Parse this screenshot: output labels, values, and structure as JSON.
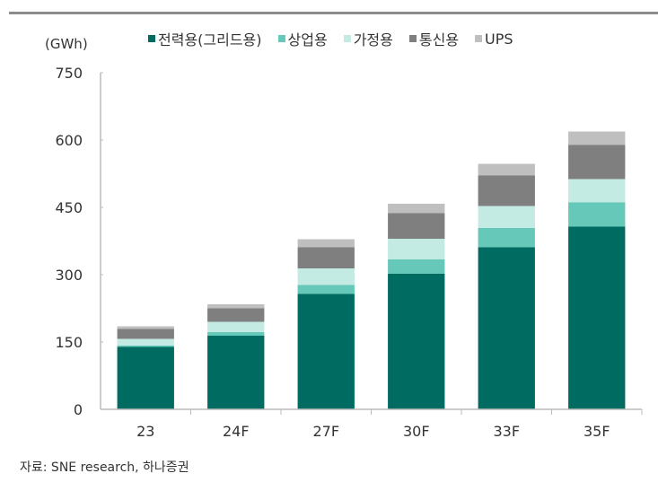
{
  "chart_data": {
    "type": "bar",
    "stacked": true,
    "unit_label": "(GWh)",
    "categories": [
      "23",
      "24F",
      "27F",
      "30F",
      "33F",
      "35F"
    ],
    "series": [
      {
        "name": "전력용(그리드용)",
        "color": "#006b60",
        "values": [
          139,
          164,
          257,
          302,
          361,
          407
        ]
      },
      {
        "name": "상업용",
        "color": "#66c8b9",
        "values": [
          3,
          8,
          20,
          32,
          43,
          54
        ]
      },
      {
        "name": "가정용",
        "color": "#c4eae4",
        "values": [
          15,
          23,
          37,
          46,
          49,
          52
        ]
      },
      {
        "name": "통신용",
        "color": "#7f7f7f",
        "values": [
          22,
          30,
          47,
          57,
          68,
          76
        ]
      },
      {
        "name": "UPS",
        "color": "#bfbfbf",
        "values": [
          6,
          9,
          18,
          21,
          26,
          30
        ]
      }
    ],
    "yticks": [
      "0",
      "150",
      "300",
      "450",
      "600",
      "750"
    ],
    "ylim": [
      0,
      750
    ],
    "grid": false,
    "legend": "top"
  },
  "source": "자료: SNE research, 하나증권"
}
